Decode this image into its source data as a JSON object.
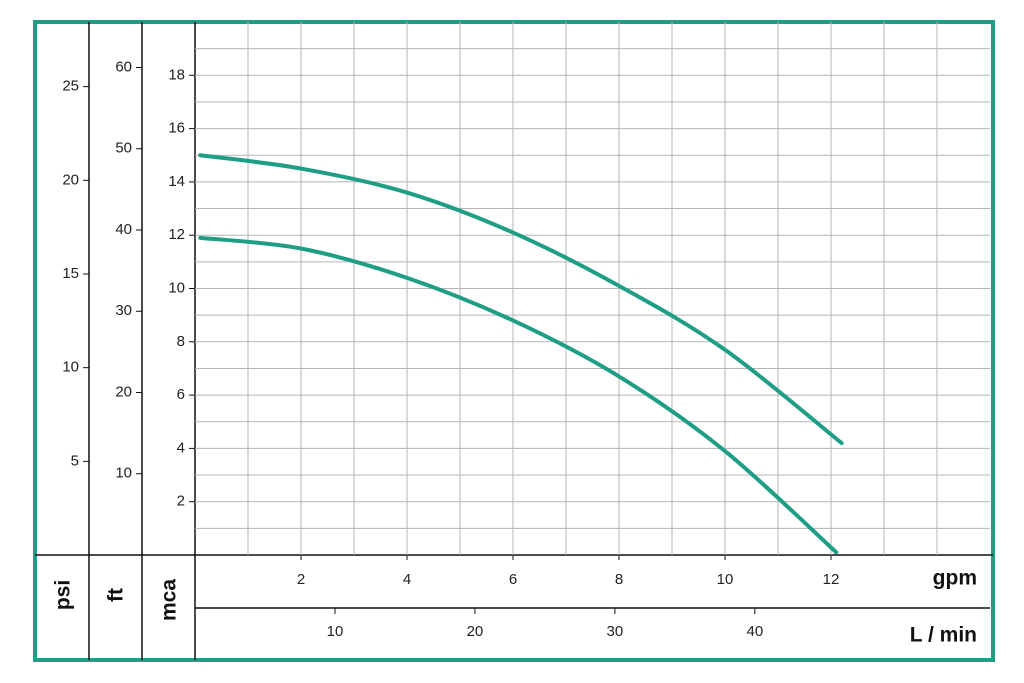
{
  "chart_data": {
    "type": "line",
    "x_label": "gpm",
    "xlim": [
      0,
      15
    ],
    "xticks": [
      2,
      4,
      6,
      8,
      10,
      12
    ],
    "xgrid": [
      1,
      2,
      3,
      4,
      5,
      6,
      7,
      8,
      9,
      10,
      11,
      12,
      13,
      14
    ],
    "x2_axis": {
      "label": "L / min",
      "lim": [
        0,
        56.8
      ],
      "ticks": [
        10,
        20,
        30,
        40
      ]
    },
    "y_label": "mca",
    "ylim": [
      0,
      20
    ],
    "yticks": [
      2,
      4,
      6,
      8,
      10,
      12,
      14,
      16,
      18
    ],
    "ygrid": [
      1,
      2,
      3,
      4,
      5,
      6,
      7,
      8,
      9,
      10,
      11,
      12,
      13,
      14,
      15,
      16,
      17,
      18,
      19
    ],
    "psi_axis": {
      "label": "psi",
      "lim": [
        0,
        28.45
      ],
      "ticks": [
        5,
        10,
        15,
        20,
        25
      ]
    },
    "ft_axis": {
      "label": "ft",
      "lim": [
        0,
        65.6
      ],
      "ticks": [
        10,
        20,
        30,
        40,
        50,
        60
      ]
    },
    "grid": true,
    "series": [
      {
        "color": "#1f9e86",
        "x": [
          0.1,
          2,
          4,
          6,
          8,
          10,
          12.2
        ],
        "values": [
          15.0,
          14.5,
          13.6,
          12.1,
          10.1,
          7.7,
          4.2
        ]
      },
      {
        "color": "#1f9e86",
        "x": [
          0.1,
          2,
          4,
          6,
          8,
          10,
          12.1
        ],
        "values": [
          11.9,
          11.5,
          10.4,
          8.8,
          6.7,
          3.9,
          0.1
        ]
      }
    ]
  }
}
